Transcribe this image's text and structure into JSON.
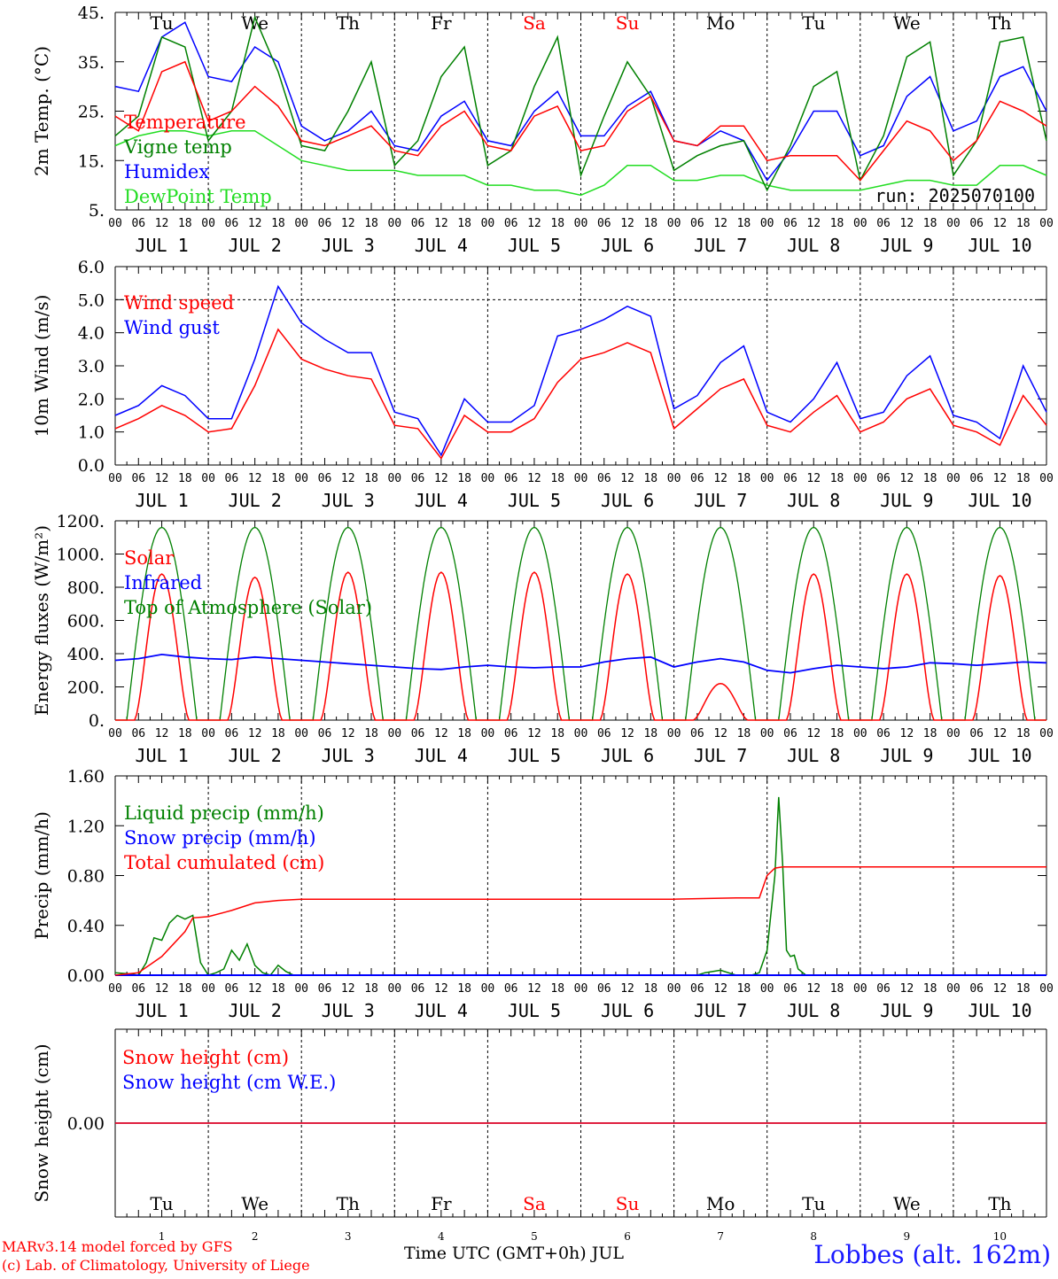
{
  "colors": {
    "red": "#ff0000",
    "green": "#008000",
    "blue": "#0000ff",
    "light_green": "#22dd22",
    "weekend": "#ff0000"
  },
  "x_axis": {
    "hour_labels": [
      "00",
      "06",
      "12",
      "18"
    ],
    "final_hour_label": "00",
    "date_labels": [
      "JUL  1",
      "JUL  2",
      "JUL  3",
      "JUL  4",
      "JUL  5",
      "JUL  6",
      "JUL  7",
      "JUL  8",
      "JUL  9",
      "JUL 10"
    ],
    "day_names": [
      "Tu",
      "We",
      "Th",
      "Fr",
      "Sa",
      "Su",
      "Mo",
      "Tu",
      "We",
      "Th"
    ],
    "weekend_days": [
      4,
      5
    ],
    "day_numbers": [
      "1",
      "2",
      "3",
      "4",
      "5",
      "6",
      "7",
      "8",
      "9",
      "10"
    ],
    "title": "Time UTC (GMT+0h) JUL"
  },
  "footer": {
    "credit_line1": "MARv3.14 model forced by GFS",
    "credit_line2": "(c) Lab. of Climatology, University of Liege",
    "station": "Lobbes (alt. 162m)"
  },
  "chart_data": [
    {
      "type": "line",
      "ylabel": "2m Temp. (°C)",
      "ylim": [
        5,
        45
      ],
      "yticks": [
        5,
        15,
        25,
        35,
        45
      ],
      "ytick_labels": [
        "5.",
        "15.",
        "25.",
        "35.",
        "45."
      ],
      "annotation": "run: 2025070100",
      "x_unit": "hours since JUL 1 00 UTC",
      "x": [
        0,
        6,
        12,
        18,
        24,
        30,
        36,
        42,
        48,
        54,
        60,
        66,
        72,
        78,
        84,
        90,
        96,
        102,
        108,
        114,
        120,
        126,
        132,
        138,
        144,
        150,
        156,
        162,
        168,
        174,
        180,
        186,
        192,
        198,
        204,
        210,
        216,
        222,
        228,
        234,
        240
      ],
      "series": [
        {
          "name": "Temperature",
          "color": "red",
          "values": [
            24,
            21,
            33,
            35,
            23,
            25,
            30,
            26,
            19,
            18,
            20,
            22,
            17,
            16,
            22,
            25,
            18,
            17,
            24,
            26,
            17,
            18,
            25,
            28,
            19,
            18,
            22,
            22,
            15,
            16,
            16,
            16,
            11,
            17,
            23,
            21,
            15,
            19,
            27,
            25,
            22
          ]
        },
        {
          "name": "Vigne temp",
          "color": "green",
          "values": [
            20,
            24,
            40,
            38,
            19,
            25,
            44,
            33,
            18,
            17,
            25,
            35,
            14,
            19,
            32,
            38,
            14,
            17,
            30,
            40,
            12,
            24,
            35,
            28,
            13,
            16,
            18,
            19,
            9,
            18,
            30,
            33,
            11,
            20,
            36,
            39,
            12,
            19,
            39,
            40,
            19
          ]
        },
        {
          "name": "Humidex",
          "color": "blue",
          "values": [
            30,
            29,
            40,
            43,
            32,
            31,
            38,
            35,
            22,
            19,
            21,
            25,
            18,
            17,
            24,
            27,
            19,
            18,
            25,
            29,
            20,
            20,
            26,
            29,
            19,
            18,
            21,
            19,
            11,
            17,
            25,
            25,
            16,
            18,
            28,
            32,
            21,
            23,
            32,
            34,
            25
          ]
        },
        {
          "name": "DewPoint Temp",
          "color": "light_green",
          "values": [
            18,
            20,
            21,
            21,
            20,
            21,
            21,
            18,
            15,
            14,
            13,
            13,
            13,
            12,
            12,
            12,
            10,
            10,
            9,
            9,
            8,
            10,
            14,
            14,
            11,
            11,
            12,
            12,
            10,
            9,
            9,
            9,
            9,
            10,
            11,
            11,
            10,
            10,
            14,
            14,
            12
          ]
        }
      ]
    },
    {
      "type": "line",
      "ylabel": "10m Wind (m/s)",
      "ylim": [
        0,
        6
      ],
      "yticks": [
        0,
        1,
        2,
        3,
        4,
        5,
        6
      ],
      "ytick_labels": [
        "0.0",
        "1.0",
        "2.0",
        "3.0",
        "4.0",
        "5.0",
        "6.0"
      ],
      "reference_line": 5.0,
      "x_unit": "hours since JUL 1 00 UTC",
      "x": [
        0,
        6,
        12,
        18,
        24,
        30,
        36,
        42,
        48,
        54,
        60,
        66,
        72,
        78,
        84,
        90,
        96,
        102,
        108,
        114,
        120,
        126,
        132,
        138,
        144,
        150,
        156,
        162,
        168,
        174,
        180,
        186,
        192,
        198,
        204,
        210,
        216,
        222,
        228,
        234,
        240
      ],
      "series": [
        {
          "name": "Wind speed",
          "color": "red",
          "values": [
            1.1,
            1.4,
            1.8,
            1.5,
            1.0,
            1.1,
            2.4,
            4.1,
            3.2,
            2.9,
            2.7,
            2.6,
            1.2,
            1.1,
            0.2,
            1.5,
            1.0,
            1.0,
            1.4,
            2.5,
            3.2,
            3.4,
            3.7,
            3.4,
            1.1,
            1.7,
            2.3,
            2.6,
            1.2,
            1.0,
            1.6,
            2.1,
            1.0,
            1.3,
            2.0,
            2.3,
            1.2,
            1.0,
            0.6,
            2.1,
            1.2
          ]
        },
        {
          "name": "Wind gust",
          "color": "blue",
          "values": [
            1.5,
            1.8,
            2.4,
            2.1,
            1.4,
            1.4,
            3.2,
            5.4,
            4.3,
            3.8,
            3.4,
            3.4,
            1.6,
            1.4,
            0.3,
            2.0,
            1.3,
            1.3,
            1.8,
            3.9,
            4.1,
            4.4,
            4.8,
            4.5,
            1.7,
            2.1,
            3.1,
            3.6,
            1.6,
            1.3,
            2.0,
            3.1,
            1.4,
            1.6,
            2.7,
            3.3,
            1.5,
            1.3,
            0.8,
            3.0,
            1.6
          ]
        }
      ]
    },
    {
      "type": "line",
      "ylabel": "Energy fluxes (W/m²)",
      "ylim": [
        0,
        1200
      ],
      "yticks": [
        0,
        200,
        400,
        600,
        800,
        1000,
        1200
      ],
      "ytick_labels": [
        "0.",
        "200.",
        "400.",
        "600.",
        "800.",
        "1000.",
        "1200."
      ],
      "x_unit": "hours since JUL 1 00 UTC",
      "series": [
        {
          "name": "Solar",
          "color": "red",
          "daily_peak": [
            880,
            860,
            890,
            890,
            890,
            880,
            220,
            880,
            880,
            870
          ]
        },
        {
          "name": "Infrared",
          "color": "blue",
          "x": [
            0,
            6,
            12,
            18,
            24,
            30,
            36,
            42,
            48,
            54,
            60,
            66,
            72,
            78,
            84,
            90,
            96,
            102,
            108,
            114,
            120,
            126,
            132,
            138,
            144,
            150,
            156,
            162,
            168,
            174,
            180,
            186,
            192,
            198,
            204,
            210,
            216,
            222,
            228,
            234,
            240
          ],
          "values": [
            360,
            370,
            395,
            380,
            370,
            365,
            380,
            370,
            360,
            350,
            340,
            330,
            320,
            310,
            305,
            320,
            330,
            320,
            315,
            320,
            320,
            350,
            370,
            380,
            320,
            350,
            370,
            350,
            300,
            285,
            310,
            330,
            320,
            310,
            320,
            345,
            340,
            330,
            340,
            350,
            345
          ]
        },
        {
          "name": "Top of Atmosphere (Solar)",
          "color": "green",
          "daily_peak": [
            1160,
            1160,
            1160,
            1160,
            1160,
            1160,
            1160,
            1160,
            1160,
            1160
          ]
        }
      ]
    },
    {
      "type": "line",
      "ylabel": "Precip (mm/h)",
      "ylim": [
        0,
        1.6
      ],
      "yticks": [
        0,
        0.4,
        0.8,
        1.2,
        1.6
      ],
      "ytick_labels": [
        "0.00",
        "0.40",
        "0.80",
        "1.20",
        "1.60"
      ],
      "x_unit": "hours since JUL 1 00 UTC",
      "series": [
        {
          "name": "Liquid precip (mm/h)",
          "color": "green",
          "x": [
            0,
            4,
            6,
            8,
            10,
            12,
            14,
            16,
            18,
            20,
            22,
            24,
            26,
            28,
            30,
            32,
            34,
            36,
            38,
            40,
            42,
            44,
            46,
            48,
            150,
            152,
            156,
            160,
            162,
            164,
            166,
            168,
            170,
            171,
            172,
            173,
            174,
            175,
            176,
            178,
            180,
            240
          ],
          "values": [
            0.02,
            0.01,
            0.0,
            0.1,
            0.3,
            0.28,
            0.42,
            0.48,
            0.45,
            0.48,
            0.1,
            0.0,
            0.02,
            0.05,
            0.2,
            0.12,
            0.25,
            0.08,
            0.02,
            0.0,
            0.08,
            0.03,
            0.0,
            0.0,
            0.0,
            0.02,
            0.04,
            0.0,
            0.0,
            0.0,
            0.02,
            0.2,
            0.8,
            1.43,
            0.9,
            0.2,
            0.15,
            0.16,
            0.05,
            0.0,
            0.0,
            0.0
          ]
        },
        {
          "name": "Snow precip (mm/h)",
          "color": "blue",
          "x": [
            0,
            240
          ],
          "values": [
            0,
            0
          ]
        },
        {
          "name": "Total cumulated (cm)",
          "color": "red",
          "x": [
            0,
            6,
            12,
            18,
            20,
            24,
            30,
            36,
            42,
            48,
            72,
            96,
            120,
            144,
            160,
            166,
            168,
            170,
            172,
            240
          ],
          "values": [
            0.0,
            0.02,
            0.15,
            0.35,
            0.46,
            0.47,
            0.52,
            0.58,
            0.6,
            0.61,
            0.61,
            0.61,
            0.61,
            0.61,
            0.62,
            0.62,
            0.8,
            0.86,
            0.87,
            0.87
          ]
        }
      ]
    },
    {
      "type": "line",
      "ylabel": "Snow height (cm)",
      "ylim": [
        -1,
        1
      ],
      "yticks": [
        0
      ],
      "ytick_labels": [
        "0.00"
      ],
      "x_unit": "hours since JUL 1 00 UTC",
      "series": [
        {
          "name": "Snow height (cm)",
          "color": "red",
          "x": [
            0,
            240
          ],
          "values": [
            0,
            0
          ]
        },
        {
          "name": "Snow height (cm W.E.)",
          "color": "blue",
          "x": [
            0,
            240
          ],
          "values": [
            0,
            0
          ]
        }
      ]
    }
  ]
}
